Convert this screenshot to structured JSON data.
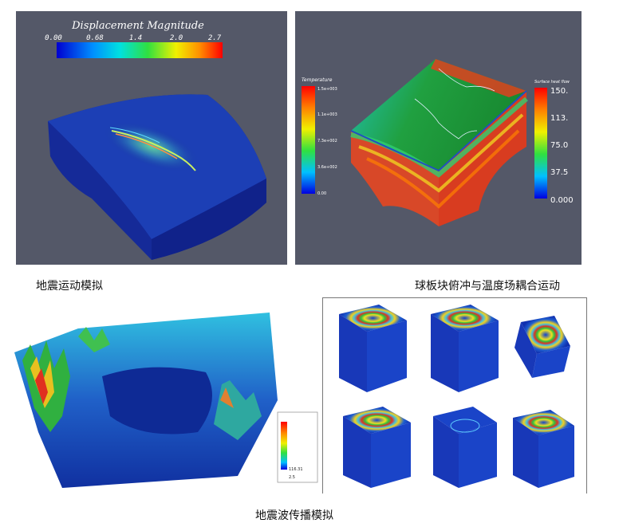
{
  "panel1": {
    "colorbar_title": "Displacement Magnitude",
    "ticks": [
      "0.00",
      "0.68",
      "1.4",
      "2.0",
      "2.7"
    ]
  },
  "panel2": {
    "left_bar_title": "Temperature",
    "left_ticks": [
      "1.5e+003",
      "1.1e+003",
      "7.3e+002",
      "3.6e+002",
      "0.00"
    ],
    "right_bar_title": "Surface heat flow",
    "right_ticks": [
      "150.",
      "113.",
      "75.0",
      "37.5",
      "0.000"
    ]
  },
  "panel3": {
    "legend_ticks": [
      "116.31",
      "2.5"
    ]
  },
  "captions": {
    "earthquake_motion": "地震运动模拟",
    "plate_coupling": "球板块俯冲与温度场耦合运动",
    "wave_propagation": "地震波传播模拟"
  }
}
